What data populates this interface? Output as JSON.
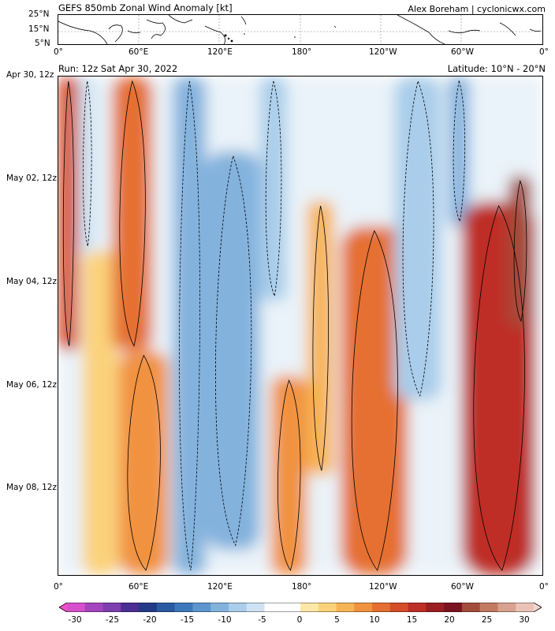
{
  "header": {
    "title": "GEFS 850mb Zonal Wind Anomaly [kt]",
    "credit": "Alex Boreham | cyclonicwx.com",
    "run": "Run: 12z Sat Apr 30, 2022",
    "latitude": "Latitude: 10°N - 20°N"
  },
  "map": {
    "lat_labels": [
      "25°N",
      "15°N",
      "5°N"
    ],
    "lon_labels": [
      "0°",
      "60°E",
      "120°E",
      "180°",
      "120°W",
      "60°W",
      "0°"
    ]
  },
  "chart_data": {
    "type": "heatmap",
    "title": "GEFS 850mb Zonal Wind Anomaly [kt]",
    "xlabel": "",
    "ylabel": "",
    "x_ticks": [
      "0°",
      "60°E",
      "120°E",
      "180°",
      "120°W",
      "60°W",
      "0°"
    ],
    "x_range_deg_east": [
      0,
      360
    ],
    "y_ticks": [
      "Apr 30, 12z",
      "May 02, 12z",
      "May 04, 12z",
      "May 06, 12z",
      "May 08, 12z"
    ],
    "y_direction": "time increases downward",
    "colorbar": {
      "ticks": [
        -30,
        -25,
        -20,
        -15,
        -10,
        -5,
        0,
        5,
        10,
        15,
        20,
        25,
        30
      ],
      "range": [
        -30,
        30
      ],
      "colors": [
        "#f24ecb",
        "#d64fcb",
        "#a545be",
        "#7e3fb0",
        "#4b2d93",
        "#253a87",
        "#2c5aa2",
        "#3d78bb",
        "#5d96cf",
        "#83b2dd",
        "#a9cdea",
        "#cde3f3",
        "#ffffff",
        "#ffffff",
        "#fde7a7",
        "#fbd27b",
        "#f7b456",
        "#f19240",
        "#e56f31",
        "#d44e2a",
        "#be2f26",
        "#9b1e22",
        "#7a1420",
        "#a44c3a",
        "#c27b62",
        "#d9a18f",
        "#eac2b6",
        "#f3d8d2"
      ]
    },
    "bands": [
      {
        "lon_start": 0,
        "lon_end": 15,
        "time_start": 0.0,
        "time_end": 0.55,
        "anomaly": 12
      },
      {
        "lon_start": 15,
        "lon_end": 28,
        "time_start": 0.0,
        "time_end": 0.35,
        "anomaly": -6
      },
      {
        "lon_start": 18,
        "lon_end": 45,
        "time_start": 0.35,
        "time_end": 1.0,
        "anomaly": 3
      },
      {
        "lon_start": 40,
        "lon_end": 70,
        "time_start": 0.0,
        "time_end": 0.55,
        "anomaly": 9
      },
      {
        "lon_start": 45,
        "lon_end": 82,
        "time_start": 0.55,
        "time_end": 1.0,
        "anomaly": 8
      },
      {
        "lon_start": 85,
        "lon_end": 110,
        "time_start": 0.0,
        "time_end": 1.0,
        "anomaly": -10
      },
      {
        "lon_start": 110,
        "lon_end": 150,
        "time_start": 0.15,
        "time_end": 0.95,
        "anomaly": -9
      },
      {
        "lon_start": 150,
        "lon_end": 170,
        "time_start": 0.0,
        "time_end": 0.45,
        "anomaly": -7
      },
      {
        "lon_start": 158,
        "lon_end": 185,
        "time_start": 0.6,
        "time_end": 1.0,
        "anomaly": 7
      },
      {
        "lon_start": 185,
        "lon_end": 205,
        "time_start": 0.25,
        "time_end": 0.8,
        "anomaly": 6
      },
      {
        "lon_start": 210,
        "lon_end": 260,
        "time_start": 0.3,
        "time_end": 1.0,
        "anomaly": 11
      },
      {
        "lon_start": 250,
        "lon_end": 285,
        "time_start": 0.0,
        "time_end": 0.65,
        "anomaly": -8
      },
      {
        "lon_start": 290,
        "lon_end": 306,
        "time_start": 0.0,
        "time_end": 0.3,
        "anomaly": -11
      },
      {
        "lon_start": 300,
        "lon_end": 355,
        "time_start": 0.25,
        "time_end": 1.0,
        "anomaly": 14
      },
      {
        "lon_start": 335,
        "lon_end": 352,
        "time_start": 0.2,
        "time_end": 0.5,
        "anomaly": 20
      }
    ]
  }
}
